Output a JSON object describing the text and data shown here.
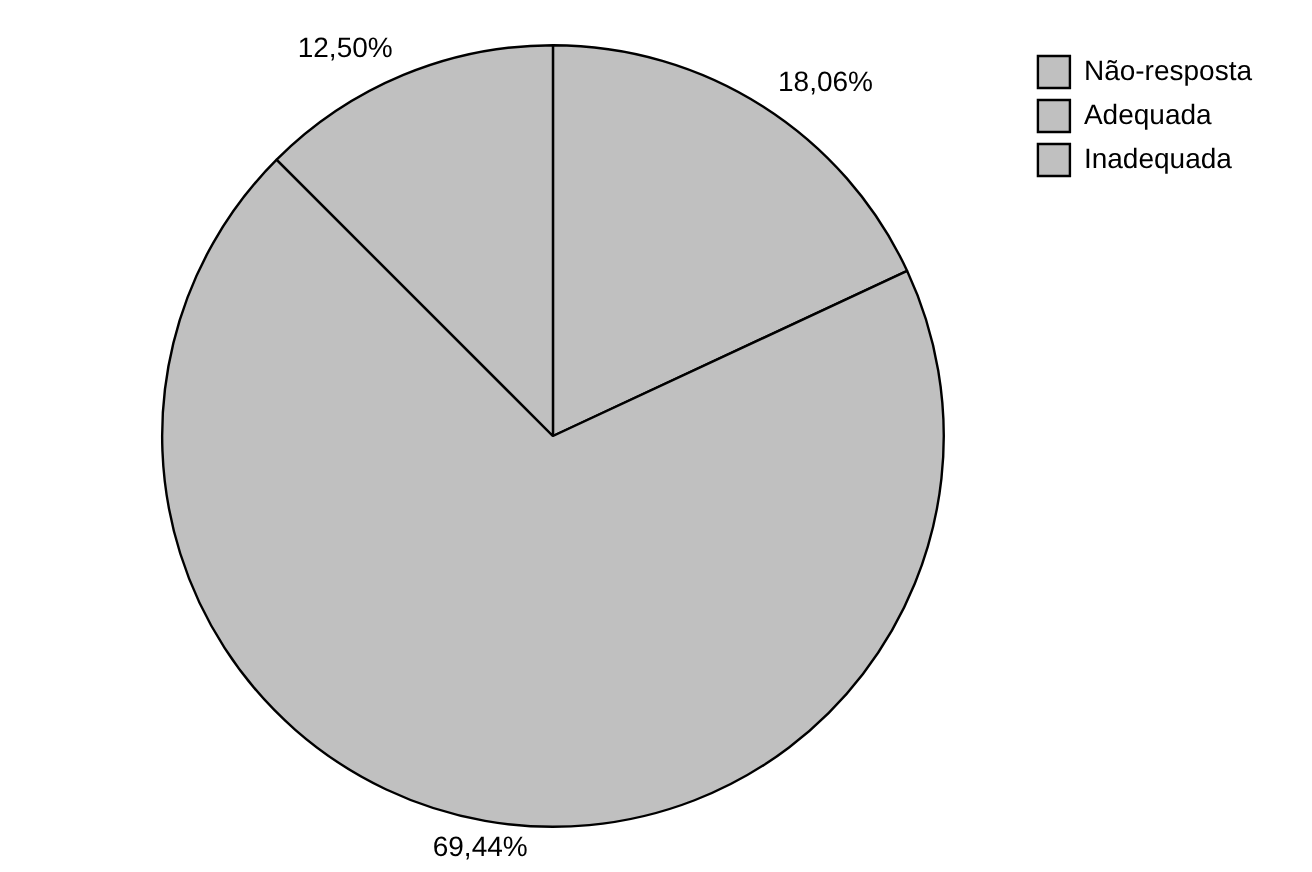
{
  "chart_data": {
    "type": "pie",
    "categories": [
      "Não-resposta",
      "Adequada",
      "Inadequada"
    ],
    "values": [
      18.06,
      69.44,
      12.5
    ],
    "value_labels": [
      "18,06%",
      "69,44%",
      "12,50%"
    ],
    "colors": [
      "#c0c0c0",
      "#c0c0c0",
      "#c0c0c0"
    ],
    "legend": "top right"
  }
}
